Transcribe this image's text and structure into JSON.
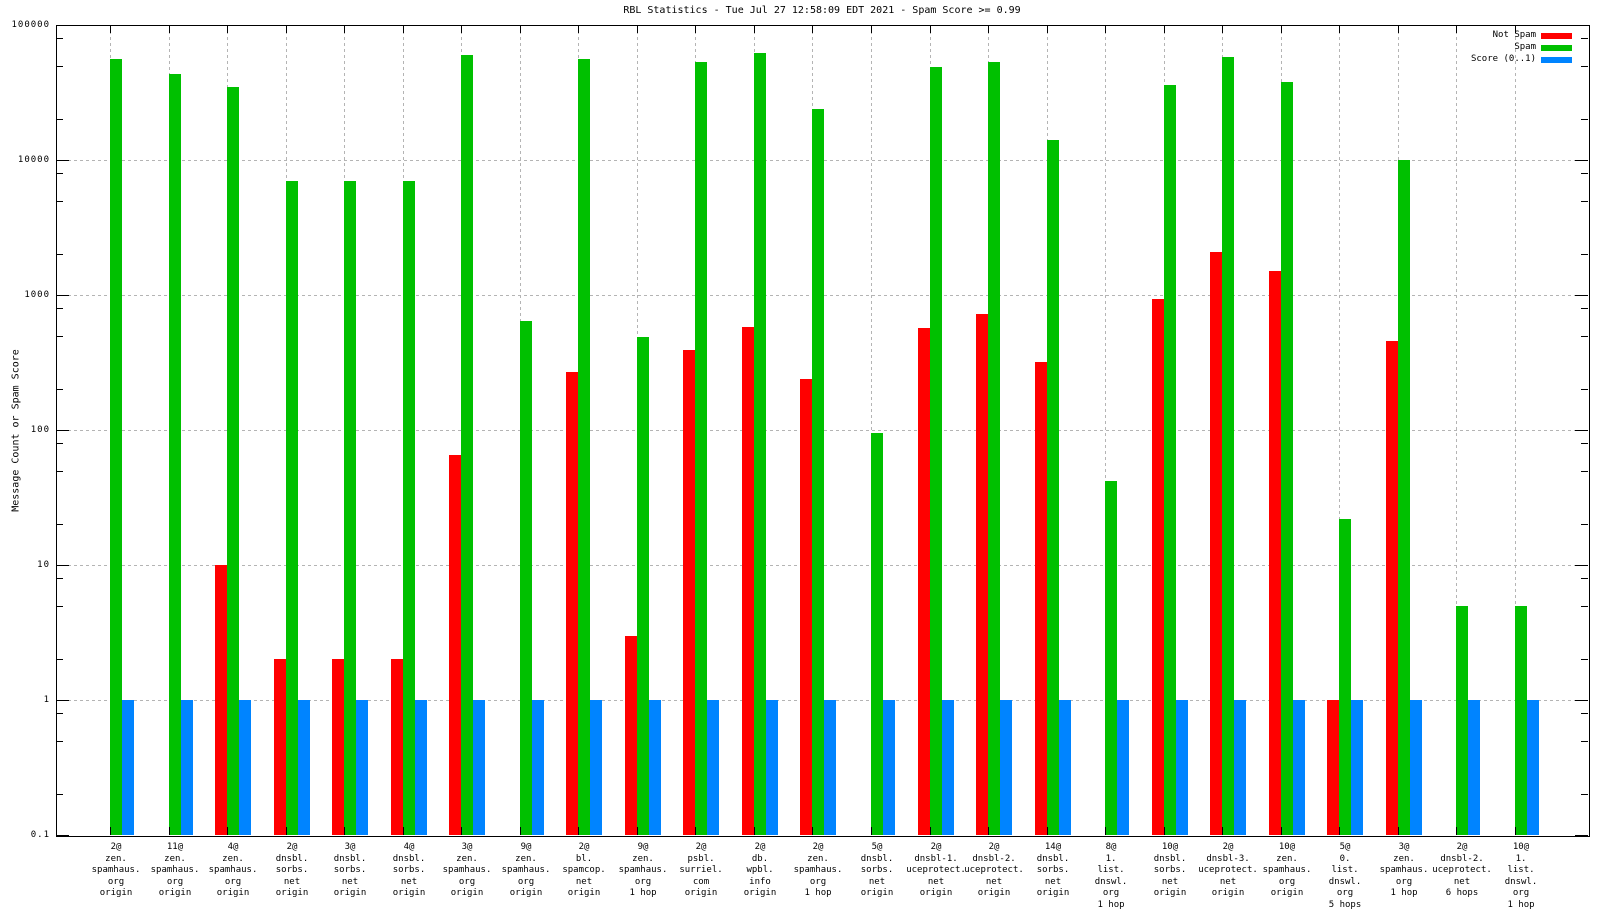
{
  "title": "RBL Statistics - Tue Jul 27 12:58:09 EDT 2021 - Spam Score >= 0.99",
  "y_axis": {
    "label": "Message Count or Spam Score",
    "scale": "log",
    "min": 0.1,
    "max": 100000,
    "tick_labels": [
      "100000",
      "10000",
      "1000",
      "100",
      "10",
      "1",
      "0.1"
    ]
  },
  "legend": {
    "position": "top-right",
    "entries": [
      {
        "label": "Not Spam",
        "color": "#ff0000"
      },
      {
        "label": "Spam",
        "color": "#00c000"
      },
      {
        "label": "Score (0..1)",
        "color": "#0084ff"
      }
    ]
  },
  "colors": {
    "not_spam": "#ff0000",
    "spam": "#00c000",
    "score": "#0084ff",
    "grid": "#b4b4b4",
    "border": "#000000"
  },
  "chart_data": {
    "type": "bar",
    "title": "RBL Statistics - Tue Jul 27 12:58:09 EDT 2021 - Spam Score >= 0.99",
    "xlabel": "",
    "ylabel": "Message Count or Spam Score",
    "y_scale": "log",
    "ylim": [
      0.1,
      100000
    ],
    "grid": true,
    "legend_position": "top-right",
    "categories": [
      [
        "2@",
        "zen.",
        "spamhaus.",
        "org",
        "origin"
      ],
      [
        "11@",
        "zen.",
        "spamhaus.",
        "org",
        "origin"
      ],
      [
        "4@",
        "zen.",
        "spamhaus.",
        "org",
        "origin"
      ],
      [
        "2@",
        "dnsbl.",
        "sorbs.",
        "net",
        "origin"
      ],
      [
        "3@",
        "dnsbl.",
        "sorbs.",
        "net",
        "origin"
      ],
      [
        "4@",
        "dnsbl.",
        "sorbs.",
        "net",
        "origin"
      ],
      [
        "3@",
        "zen.",
        "spamhaus.",
        "org",
        "origin"
      ],
      [
        "9@",
        "zen.",
        "spamhaus.",
        "org",
        "origin"
      ],
      [
        "2@",
        "bl.",
        "spamcop.",
        "net",
        "origin"
      ],
      [
        "9@",
        "zen.",
        "spamhaus.",
        "org",
        "1 hop"
      ],
      [
        "2@",
        "psbl.",
        "surriel.",
        "com",
        "origin"
      ],
      [
        "2@",
        "db.",
        "wpbl.",
        "info",
        "origin"
      ],
      [
        "2@",
        "zen.",
        "spamhaus.",
        "org",
        "1 hop"
      ],
      [
        "5@",
        "dnsbl.",
        "sorbs.",
        "net",
        "origin"
      ],
      [
        "2@",
        "dnsbl-1.",
        "uceprotect.",
        "net",
        "origin"
      ],
      [
        "2@",
        "dnsbl-2.",
        "uceprotect.",
        "net",
        "origin"
      ],
      [
        "14@",
        "dnsbl.",
        "sorbs.",
        "net",
        "origin"
      ],
      [
        "8@",
        "1.",
        "list.",
        "dnswl.",
        "org",
        "1 hop"
      ],
      [
        "10@",
        "dnsbl.",
        "sorbs.",
        "net",
        "origin"
      ],
      [
        "2@",
        "dnsbl-3.",
        "uceprotect.",
        "net",
        "origin"
      ],
      [
        "10@",
        "zen.",
        "spamhaus.",
        "org",
        "origin"
      ],
      [
        "5@",
        "0.",
        "list.",
        "dnswl.",
        "org",
        "5 hops"
      ],
      [
        "3@",
        "zen.",
        "spamhaus.",
        "org",
        "1 hop"
      ],
      [
        "2@",
        "dnsbl-2.",
        "uceprotect.",
        "net",
        "6 hops"
      ],
      [
        "10@",
        "1.",
        "list.",
        "dnswl.",
        "org",
        "1 hop"
      ]
    ],
    "series": [
      {
        "name": "Not Spam",
        "color": "#ff0000",
        "values": [
          null,
          null,
          10,
          2,
          2,
          2,
          65,
          null,
          270,
          3,
          390,
          580,
          240,
          null,
          570,
          720,
          320,
          null,
          930,
          2100,
          1500,
          1,
          460,
          null,
          null
        ]
      },
      {
        "name": "Spam",
        "color": "#00c000",
        "values": [
          56000,
          43000,
          35000,
          7000,
          7000,
          7000,
          60000,
          640,
          56000,
          490,
          53000,
          62000,
          24000,
          95,
          49000,
          53000,
          14000,
          42,
          36000,
          58000,
          38000,
          22,
          10000,
          5,
          5
        ]
      },
      {
        "name": "Score (0..1)",
        "color": "#0084ff",
        "values": [
          1,
          1,
          1,
          1,
          1,
          1,
          1,
          1,
          1,
          1,
          1,
          1,
          1,
          1,
          1,
          1,
          1,
          1,
          1,
          1,
          1,
          1,
          1,
          1,
          1
        ]
      }
    ]
  }
}
